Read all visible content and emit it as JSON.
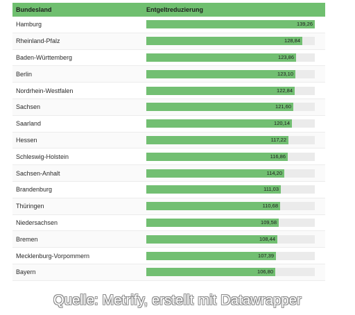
{
  "table": {
    "header_name": "Bundesland",
    "header_value": "Entgeltreduzierung"
  },
  "chart_data": {
    "type": "bar",
    "xlim": [
      0,
      139.26
    ],
    "colors": {
      "bar": "#72bf72",
      "track": "#ebebeb",
      "header": "#6fbf6f"
    },
    "categories": [
      "Hamburg",
      "Rheinland-Pfalz",
      "Baden-Württemberg",
      "Berlin",
      "Nordrhein-Westfalen",
      "Sachsen",
      "Saarland",
      "Hessen",
      "Schleswig-Holstein",
      "Sachsen-Anhalt",
      "Brandenburg",
      "Thüringen",
      "Niedersachsen",
      "Bremen",
      "Mecklenburg-Vorpommern",
      "Bayern"
    ],
    "values": [
      139.26,
      128.84,
      123.86,
      123.1,
      122.84,
      121.6,
      120.14,
      117.22,
      116.86,
      114.2,
      111.03,
      110.68,
      109.58,
      108.44,
      107.39,
      106.8
    ],
    "value_labels": [
      "139,26",
      "128,84",
      "123,86",
      "123,10",
      "122,84",
      "121,60",
      "120,14",
      "117,22",
      "116,86",
      "114,20",
      "111,03",
      "110,68",
      "109,58",
      "108,44",
      "107,39",
      "106,80"
    ]
  },
  "footer": {
    "source": "Quelle: Metrify, erstellt mit Datawrapper"
  }
}
